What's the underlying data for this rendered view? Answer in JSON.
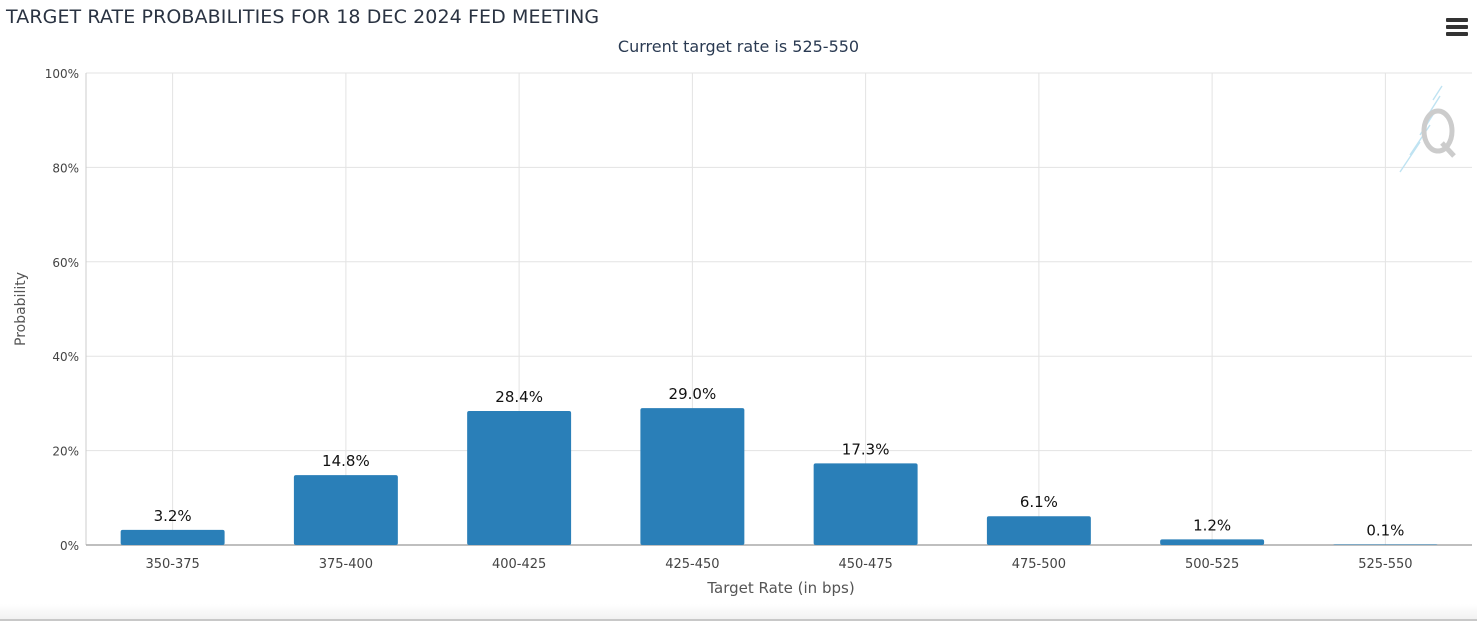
{
  "chart_data": {
    "type": "bar",
    "title": "TARGET RATE PROBABILITIES FOR 18 DEC 2024 FED MEETING",
    "subtitle": "Current target rate is 525-550",
    "xlabel": "Target Rate (in bps)",
    "ylabel": "Probability",
    "categories": [
      "350-375",
      "375-400",
      "400-425",
      "425-450",
      "450-475",
      "475-500",
      "500-525",
      "525-550"
    ],
    "values": [
      3.2,
      14.8,
      28.4,
      29.0,
      17.3,
      6.1,
      1.2,
      0.1
    ],
    "data_labels": [
      "3.2%",
      "14.8%",
      "28.4%",
      "29.0%",
      "17.3%",
      "6.1%",
      "1.2%",
      "0.1%"
    ],
    "ylim": [
      0,
      100
    ],
    "yticks": [
      "0%",
      "20%",
      "40%",
      "60%",
      "80%",
      "100%"
    ],
    "grid": true,
    "colors": {
      "bar": "#2a7fb8",
      "grid": "#e3e3e3",
      "axis": "#aaaaaa"
    }
  },
  "ui": {
    "menu_icon": "hamburger-menu-icon",
    "watermark_icon": "quikstrike-q-logo-icon"
  }
}
